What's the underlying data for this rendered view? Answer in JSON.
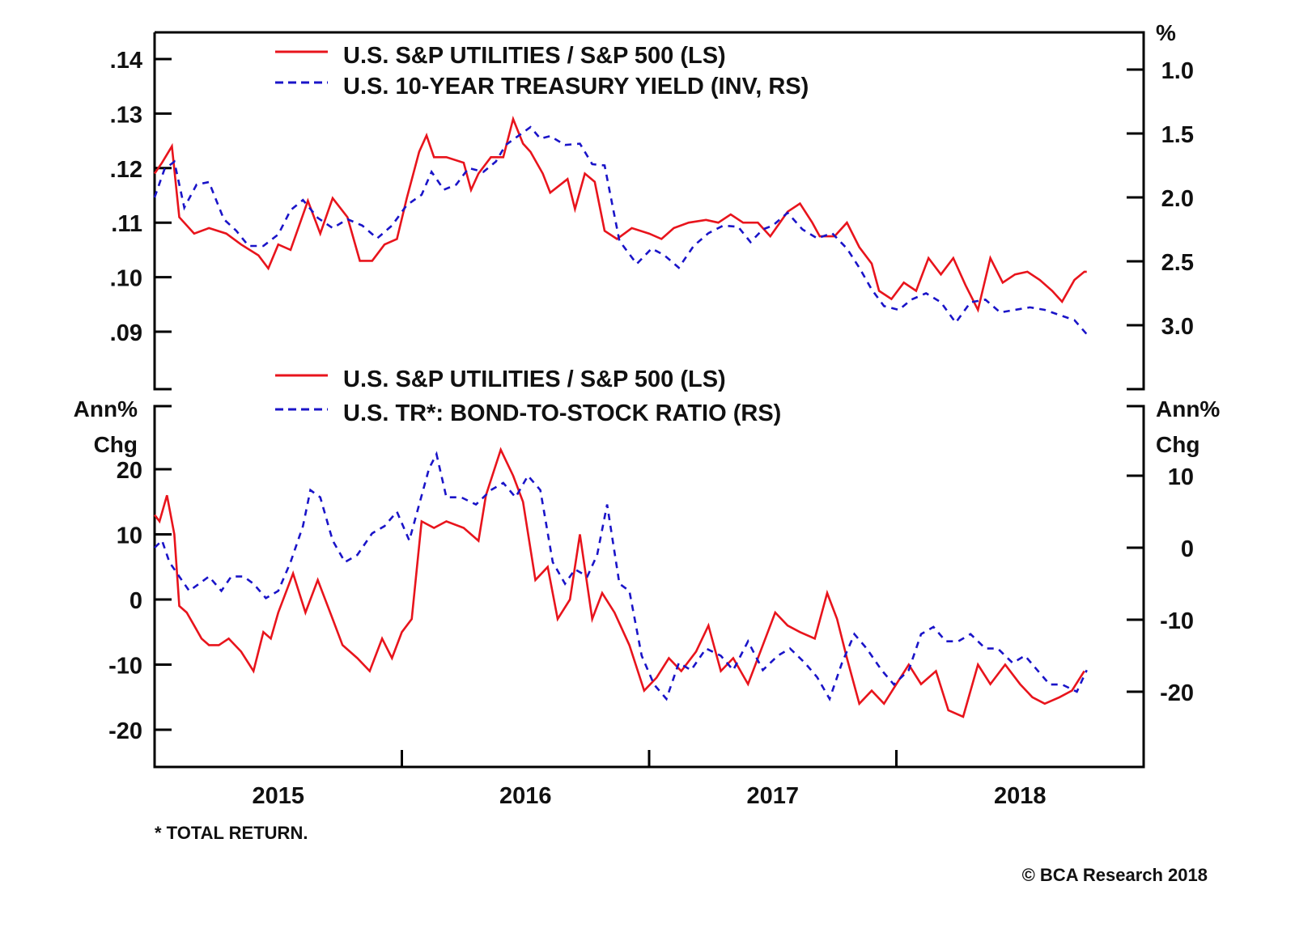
{
  "chart_data": [
    {
      "type": "line",
      "panel": "top",
      "title": "",
      "xlabel": "",
      "ylabel_left": "",
      "ylabel_right": "%",
      "xlim": [
        2015.0,
        2019.0
      ],
      "ylim_left": [
        0.083,
        0.1457
      ],
      "ylim_right_inverted": [
        0.67,
        3.45
      ],
      "left_ticks": [
        {
          "value": 0.14,
          "label": ".14"
        },
        {
          "value": 0.13,
          "label": ".13"
        },
        {
          "value": 0.12,
          "label": ".12"
        },
        {
          "value": 0.11,
          "label": ".11"
        },
        {
          "value": 0.1,
          "label": ".10"
        },
        {
          "value": 0.09,
          "label": ".09"
        }
      ],
      "right_ticks": [
        {
          "value": 1.0,
          "label": "1.0"
        },
        {
          "value": 1.5,
          "label": "1.5"
        },
        {
          "value": 2.0,
          "label": "2.0"
        },
        {
          "value": 2.5,
          "label": "2.5"
        },
        {
          "value": 3.0,
          "label": "3.0"
        }
      ],
      "legend": [
        {
          "label": "U.S. S&P UTILITIES / S&P 500 (LS)",
          "style": "solid",
          "color": "#e8141c"
        },
        {
          "label": "U.S. 10-YEAR TREASURY YIELD (INV, RS)",
          "style": "dashed",
          "color": "#1a14c8"
        }
      ],
      "legend_position": "top-center",
      "series": [
        {
          "name": "U.S. S&P UTILITIES / S&P 500 (LS)",
          "axis": "left",
          "color": "#e8141c",
          "x": [
            2015.0,
            2015.03,
            2015.07,
            2015.1,
            2015.16,
            2015.22,
            2015.29,
            2015.35,
            2015.42,
            2015.46,
            2015.5,
            2015.55,
            2015.62,
            2015.67,
            2015.72,
            2015.78,
            2015.83,
            2015.88,
            2015.93,
            2015.98,
            2016.02,
            2016.07,
            2016.1,
            2016.13,
            2016.18,
            2016.25,
            2016.28,
            2016.31,
            2016.36,
            2016.41,
            2016.45,
            2016.49,
            2016.52,
            2016.57,
            2016.6,
            2016.67,
            2016.7,
            2016.74,
            2016.78,
            2016.82,
            2016.87,
            2016.93,
            2017.0,
            2017.05,
            2017.1,
            2017.16,
            2017.23,
            2017.28,
            2017.33,
            2017.38,
            2017.44,
            2017.49,
            2017.56,
            2017.61,
            2017.66,
            2017.69,
            2017.75,
            2017.8,
            2017.85,
            2017.9,
            2017.93,
            2017.98,
            2018.03,
            2018.08,
            2018.13,
            2018.18,
            2018.23,
            2018.28,
            2018.33,
            2018.38,
            2018.43,
            2018.48,
            2018.53,
            2018.58,
            2018.63,
            2018.67,
            2018.72,
            2018.76,
            2018.77
          ],
          "values": [
            0.119,
            0.121,
            0.124,
            0.111,
            0.108,
            0.109,
            0.108,
            0.106,
            0.104,
            0.1016,
            0.106,
            0.105,
            0.114,
            0.108,
            0.1145,
            0.111,
            0.103,
            0.103,
            0.106,
            0.107,
            0.1145,
            0.123,
            0.126,
            0.122,
            0.122,
            0.121,
            0.116,
            0.119,
            0.122,
            0.122,
            0.129,
            0.1245,
            0.123,
            0.119,
            0.1155,
            0.118,
            0.1125,
            0.119,
            0.1175,
            0.1085,
            0.107,
            0.109,
            0.108,
            0.107,
            0.109,
            0.11,
            0.1105,
            0.11,
            0.1115,
            0.11,
            0.11,
            0.1075,
            0.112,
            0.1135,
            0.11,
            0.1075,
            0.1075,
            0.11,
            0.1055,
            0.1025,
            0.0975,
            0.096,
            0.099,
            0.0975,
            0.1035,
            0.1005,
            0.1035,
            0.0985,
            0.094,
            0.1035,
            0.099,
            0.1005,
            0.101,
            0.0995,
            0.0975,
            0.0955,
            0.0995,
            0.101,
            0.101
          ]
        },
        {
          "name": "U.S. 10-YEAR TREASURY YIELD (INV, RS)",
          "axis": "right",
          "inverted": true,
          "color": "#1a14c8",
          "x": [
            2015.0,
            2015.04,
            2015.08,
            2015.12,
            2015.17,
            2015.22,
            2015.28,
            2015.33,
            2015.38,
            2015.44,
            2015.5,
            2015.55,
            2015.6,
            2015.66,
            2015.72,
            2015.78,
            2015.84,
            2015.9,
            2015.96,
            2016.02,
            2016.08,
            2016.12,
            2016.17,
            2016.22,
            2016.27,
            2016.33,
            2016.38,
            2016.42,
            2016.47,
            2016.52,
            2016.56,
            2016.6,
            2016.66,
            2016.72,
            2016.77,
            2016.82,
            2016.88,
            2016.95,
            2017.01,
            2017.06,
            2017.12,
            2017.18,
            2017.24,
            2017.3,
            2017.36,
            2017.41,
            2017.46,
            2017.5,
            2017.56,
            2017.62,
            2017.68,
            2017.74,
            2017.8,
            2017.85,
            2017.9,
            2017.95,
            2018.01,
            2018.06,
            2018.12,
            2018.18,
            2018.24,
            2018.3,
            2018.36,
            2018.42,
            2018.48,
            2018.54,
            2018.6,
            2018.66,
            2018.72,
            2018.77
          ],
          "values": [
            2.0,
            1.78,
            1.72,
            2.08,
            1.9,
            1.88,
            2.17,
            2.26,
            2.38,
            2.38,
            2.29,
            2.1,
            2.02,
            2.16,
            2.24,
            2.17,
            2.22,
            2.32,
            2.22,
            2.06,
            1.98,
            1.8,
            1.94,
            1.9,
            1.77,
            1.8,
            1.72,
            1.59,
            1.52,
            1.45,
            1.54,
            1.52,
            1.59,
            1.58,
            1.74,
            1.75,
            2.34,
            2.52,
            2.4,
            2.45,
            2.55,
            2.38,
            2.28,
            2.22,
            2.23,
            2.35,
            2.25,
            2.22,
            2.12,
            2.25,
            2.32,
            2.28,
            2.4,
            2.55,
            2.72,
            2.85,
            2.88,
            2.8,
            2.75,
            2.82,
            2.98,
            2.82,
            2.8,
            2.9,
            2.88,
            2.86,
            2.88,
            2.92,
            2.96,
            3.07
          ]
        }
      ]
    },
    {
      "type": "line",
      "panel": "bottom",
      "title": "",
      "xlabel": "",
      "ylabel_left": "Ann% Chg",
      "ylabel_right": "Ann% Chg",
      "xlim": [
        2015.0,
        2019.0
      ],
      "ylim_left": [
        -25,
        28
      ],
      "ylim_right": [
        -30,
        19
      ],
      "x_tick_labels": [
        "2015",
        "2016",
        "2017",
        "2018"
      ],
      "left_ticks": [
        {
          "value": 20,
          "label": "20"
        },
        {
          "value": 10,
          "label": "10"
        },
        {
          "value": 0,
          "label": "0"
        },
        {
          "value": -10,
          "label": "-10"
        },
        {
          "value": -20,
          "label": "-20"
        }
      ],
      "right_ticks": [
        {
          "value": 10,
          "label": "10"
        },
        {
          "value": 0,
          "label": "0"
        },
        {
          "value": -10,
          "label": "-10"
        },
        {
          "value": -20,
          "label": "-20"
        }
      ],
      "legend": [
        {
          "label": "U.S. S&P UTILITIES / S&P 500 (LS)",
          "style": "solid",
          "color": "#e8141c"
        },
        {
          "label": "U.S. TR*: BOND-TO-STOCK RATIO (RS)",
          "style": "dashed",
          "color": "#1a14c8"
        }
      ],
      "legend_position": "top-center",
      "series": [
        {
          "name": "U.S. S&P UTILITIES / S&P 500 (LS)",
          "axis": "left",
          "color": "#e8141c",
          "x": [
            2015.0,
            2015.02,
            2015.05,
            2015.08,
            2015.1,
            2015.13,
            2015.16,
            2015.19,
            2015.22,
            2015.26,
            2015.3,
            2015.35,
            2015.4,
            2015.44,
            2015.47,
            2015.5,
            2015.56,
            2015.61,
            2015.66,
            2015.72,
            2015.76,
            2015.82,
            2015.87,
            2015.92,
            2015.96,
            2016.0,
            2016.04,
            2016.08,
            2016.13,
            2016.18,
            2016.25,
            2016.31,
            2016.34,
            2016.4,
            2016.45,
            2016.49,
            2016.54,
            2016.59,
            2016.63,
            2016.68,
            2016.72,
            2016.77,
            2016.81,
            2016.86,
            2016.92,
            2016.98,
            2017.03,
            2017.08,
            2017.13,
            2017.19,
            2017.24,
            2017.29,
            2017.34,
            2017.4,
            2017.46,
            2017.51,
            2017.56,
            2017.61,
            2017.67,
            2017.72,
            2017.76,
            2017.8,
            2017.85,
            2017.9,
            2017.95,
            2018.0,
            2018.05,
            2018.1,
            2018.16,
            2018.21,
            2018.27,
            2018.33,
            2018.38,
            2018.44,
            2018.5,
            2018.55,
            2018.6,
            2018.66,
            2018.71,
            2018.76
          ],
          "values": [
            13,
            12,
            16,
            10,
            -1,
            -2,
            -4,
            -6,
            -7,
            -7,
            -6,
            -8,
            -11,
            -5,
            -6,
            -2,
            4,
            -2,
            3,
            -3,
            -7,
            -9,
            -11,
            -6,
            -9,
            -5,
            -3,
            12,
            11,
            12,
            11,
            9,
            16,
            23,
            19,
            15,
            3,
            5,
            -3,
            0,
            10,
            -3,
            1,
            -2,
            -7,
            -14,
            -12,
            -9,
            -11,
            -8,
            -4,
            -11,
            -9,
            -13,
            -7,
            -2,
            -4,
            -5,
            -6,
            1,
            -3,
            -9,
            -16,
            -14,
            -16,
            -13,
            -10,
            -13,
            -11,
            -17,
            -18,
            -10,
            -13,
            -10,
            -13,
            -15,
            -16,
            -15,
            -14,
            -11
          ]
        },
        {
          "name": "U.S. TR*: BOND-TO-STOCK RATIO (RS)",
          "axis": "right",
          "color": "#1a14c8",
          "x": [
            2015.0,
            2015.03,
            2015.06,
            2015.1,
            2015.14,
            2015.18,
            2015.22,
            2015.27,
            2015.31,
            2015.36,
            2015.4,
            2015.45,
            2015.5,
            2015.55,
            2015.6,
            2015.63,
            2015.67,
            2015.72,
            2015.77,
            2015.82,
            2015.88,
            2015.93,
            2015.98,
            2016.03,
            2016.07,
            2016.11,
            2016.14,
            2016.18,
            2016.24,
            2016.3,
            2016.36,
            2016.41,
            2016.46,
            2016.51,
            2016.56,
            2016.61,
            2016.66,
            2016.7,
            2016.75,
            2016.79,
            2016.83,
            2016.88,
            2016.92,
            2016.97,
            2017.02,
            2017.07,
            2017.12,
            2017.17,
            2017.23,
            2017.29,
            2017.34,
            2017.4,
            2017.46,
            2017.52,
            2017.57,
            2017.63,
            2017.68,
            2017.73,
            2017.78,
            2017.83,
            2017.88,
            2017.94,
            2017.99,
            2018.05,
            2018.1,
            2018.15,
            2018.2,
            2018.25,
            2018.3,
            2018.36,
            2018.41,
            2018.47,
            2018.52,
            2018.57,
            2018.62,
            2018.67,
            2018.73,
            2018.77
          ],
          "values": [
            0,
            1,
            -2,
            -4,
            -6,
            -5,
            -4,
            -6,
            -4,
            -4,
            -5,
            -7,
            -6,
            -2,
            3,
            8,
            7,
            1,
            -2,
            -1,
            2,
            3,
            5,
            1,
            6,
            11,
            13,
            7,
            7,
            6,
            8,
            9,
            7,
            10,
            8,
            -2,
            -5,
            -3,
            -4,
            -1,
            6,
            -5,
            -6,
            -15,
            -19,
            -21,
            -16,
            -17,
            -14,
            -15,
            -17,
            -13,
            -17,
            -15,
            -14,
            -16,
            -18,
            -21,
            -16,
            -12,
            -14,
            -17,
            -19,
            -17,
            -12,
            -11,
            -13,
            -13,
            -12,
            -14,
            -14,
            -16,
            -15,
            -17,
            -19,
            -19,
            -20,
            -17
          ]
        }
      ]
    }
  ],
  "footer": {
    "footnote": "* TOTAL RETURN.",
    "copyright": "© BCA Research 2018"
  }
}
